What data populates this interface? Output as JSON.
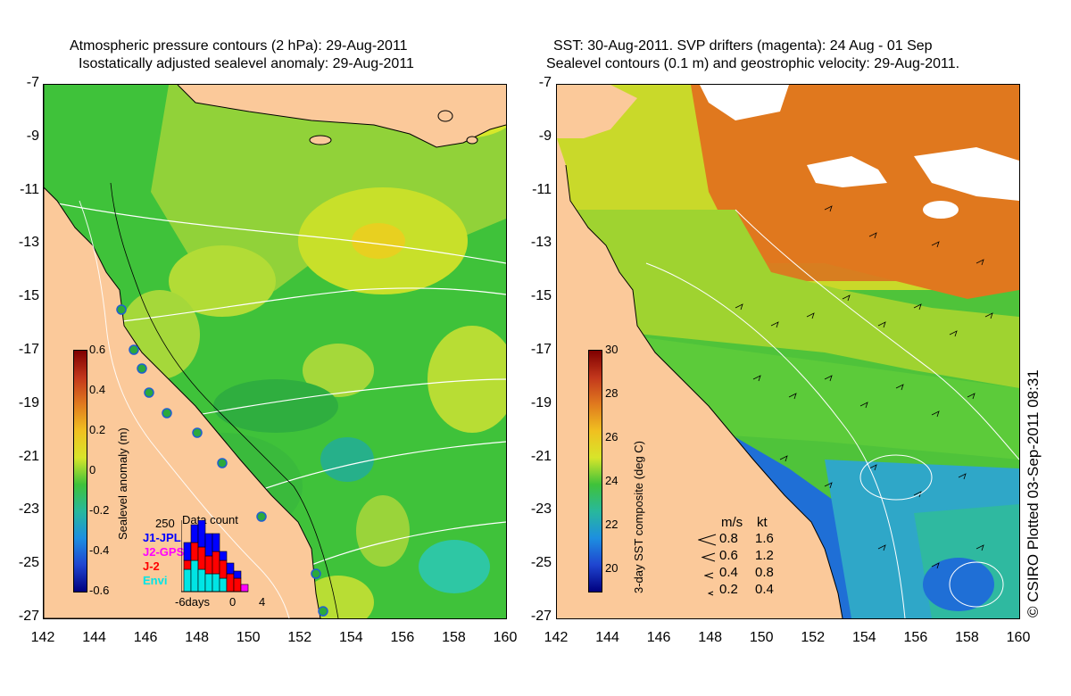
{
  "left_panel": {
    "title_line1": "Atmospheric pressure contours (2 hPa): 29-Aug-2011",
    "title_line2": "Isostatically adjusted sealevel anomaly: 29-Aug-2011",
    "colorbar": {
      "title": "Sealevel anomaly (m)",
      "ticks": [
        "0.6",
        "0.4",
        "0.2",
        "0",
        "-0.2",
        "-0.4",
        "-0.6"
      ],
      "range": [
        -0.6,
        0.6
      ]
    },
    "data_count": {
      "title": "Data count",
      "max_label": "250",
      "satellites": [
        {
          "name": "J1-JPL",
          "color": "#0000ff"
        },
        {
          "name": "J2-GPS",
          "color": "#ff00ff"
        },
        {
          "name": "J-2",
          "color": "#ff0000"
        },
        {
          "name": "Envi",
          "color": "#00e5e5"
        }
      ],
      "x_labels": [
        "-6days",
        "0",
        "4"
      ]
    }
  },
  "right_panel": {
    "title_line1": "SST: 30-Aug-2011. SVP drifters (magenta): 24 Aug - 01 Sep",
    "title_line2": "Sealevel contours (0.1 m) and geostrophic velocity: 29-Aug-2011.",
    "colorbar": {
      "title": "3-day SST composite (deg C)",
      "ticks": [
        "30",
        "28",
        "26",
        "24",
        "22",
        "20"
      ],
      "range": [
        19,
        30
      ]
    },
    "velocity_legend": {
      "header_ms": "m/s",
      "header_kt": "kt",
      "rows": [
        {
          "ms": "0.8",
          "kt": "1.6"
        },
        {
          "ms": "0.6",
          "kt": "1.2"
        },
        {
          "ms": "0.4",
          "kt": "0.8"
        },
        {
          "ms": "0.2",
          "kt": "0.4"
        }
      ]
    }
  },
  "axes": {
    "y_ticks": [
      "-7",
      "-9",
      "-11",
      "-13",
      "-15",
      "-17",
      "-19",
      "-21",
      "-23",
      "-25",
      "-27"
    ],
    "x_ticks": [
      "142",
      "144",
      "146",
      "148",
      "150",
      "152",
      "154",
      "156",
      "158",
      "160"
    ],
    "lat_range": [
      -27,
      -7
    ],
    "lon_range": [
      142,
      160
    ]
  },
  "copyright": "© CSIRO Plotted 03-Sep-2011 08:31",
  "colors": {
    "land": "#fbc99a",
    "sla_green": "#3fc23a",
    "sla_yellow": "#c8e02a",
    "sst_orange": "#e0781e",
    "sst_blue": "#1f6fd6"
  }
}
